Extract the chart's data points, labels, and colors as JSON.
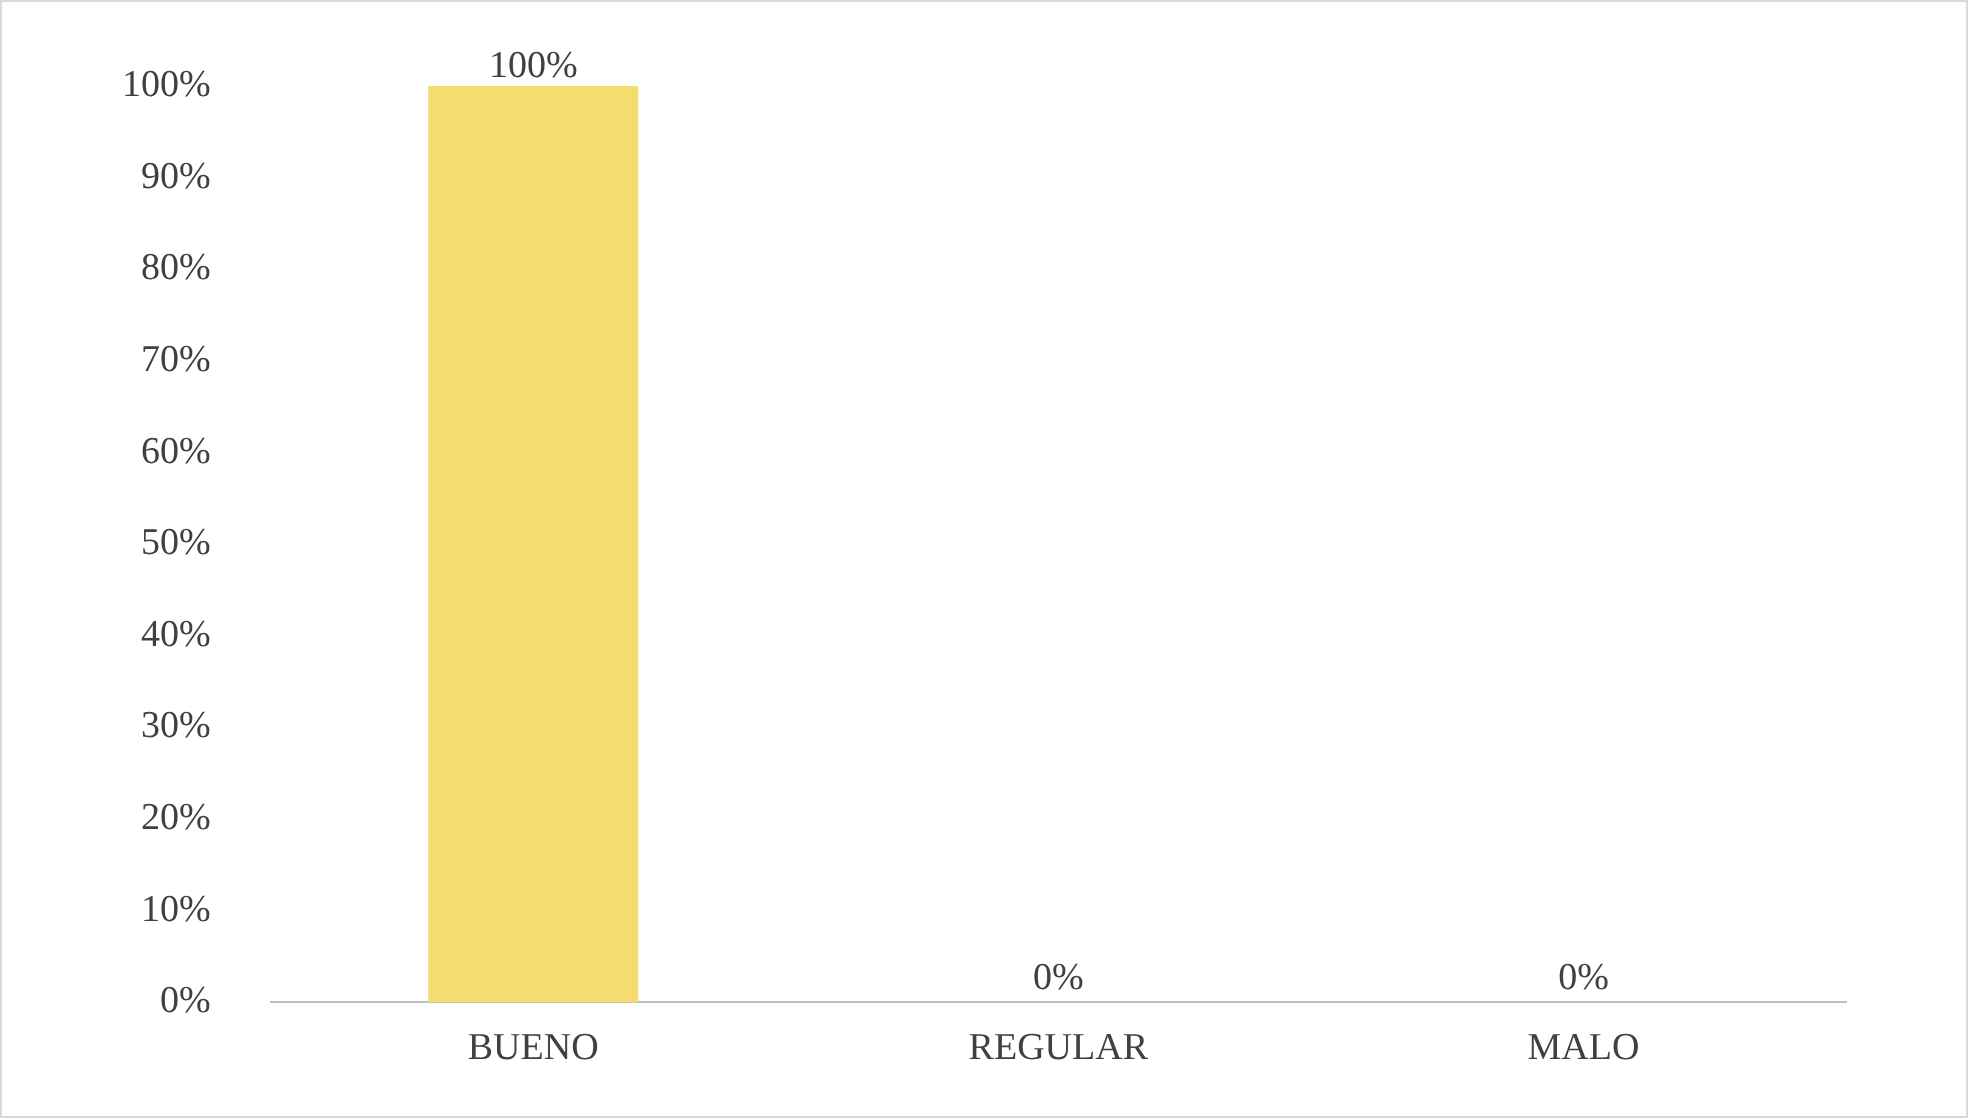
{
  "chart_data": {
    "type": "bar",
    "categories": [
      "BUENO",
      "REGULAR",
      "MALO"
    ],
    "values": [
      100,
      0,
      0
    ],
    "color": "#f5dc6e",
    "data_labels": true,
    "value_labels": [
      "100%",
      "0%",
      "0%"
    ],
    "ylim": [
      0,
      100
    ],
    "yticks": [
      {
        "value": 0,
        "label": "0%"
      },
      {
        "value": 10,
        "label": "10%"
      },
      {
        "value": 20,
        "label": "20%"
      },
      {
        "value": 30,
        "label": "30%"
      },
      {
        "value": 40,
        "label": "40%"
      },
      {
        "value": 50,
        "label": "50%"
      },
      {
        "value": 60,
        "label": "60%"
      },
      {
        "value": 70,
        "label": "70%"
      },
      {
        "value": 80,
        "label": "80%"
      },
      {
        "value": 90,
        "label": "90%"
      },
      {
        "value": 100,
        "label": "100%"
      }
    ],
    "grid": false,
    "legend": false
  }
}
